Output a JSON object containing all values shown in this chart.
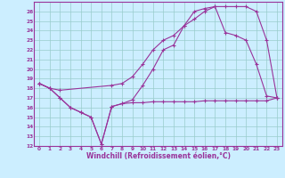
{
  "xlabel": "Windchill (Refroidissement éolien,°C)",
  "bg_color": "#cceeff",
  "line_color": "#993399",
  "grid_color": "#99cccc",
  "xlim": [
    -0.5,
    23.5
  ],
  "ylim": [
    12,
    27
  ],
  "xticks": [
    0,
    1,
    2,
    3,
    4,
    5,
    6,
    7,
    8,
    9,
    10,
    11,
    12,
    13,
    14,
    15,
    16,
    17,
    18,
    19,
    20,
    21,
    22,
    23
  ],
  "yticks": [
    12,
    13,
    14,
    15,
    16,
    17,
    18,
    19,
    20,
    21,
    22,
    23,
    24,
    25,
    26
  ],
  "curve1_x": [
    0,
    1,
    2,
    3,
    4,
    5,
    6,
    7,
    8,
    9,
    10,
    11,
    12,
    13,
    14,
    15,
    16,
    17,
    18,
    19,
    20,
    21,
    22,
    23
  ],
  "curve1_y": [
    18.5,
    18.0,
    17.0,
    16.0,
    15.5,
    15.0,
    12.2,
    16.1,
    16.4,
    16.5,
    16.5,
    16.6,
    16.6,
    16.6,
    16.6,
    16.6,
    16.7,
    16.7,
    16.7,
    16.7,
    16.7,
    16.7,
    16.7,
    17.0
  ],
  "curve2_x": [
    0,
    1,
    2,
    3,
    4,
    5,
    6,
    7,
    8,
    9,
    10,
    11,
    12,
    13,
    14,
    15,
    16,
    17,
    18,
    19,
    20,
    21,
    22,
    23
  ],
  "curve2_y": [
    18.5,
    18.0,
    17.0,
    16.0,
    15.5,
    15.0,
    12.2,
    16.1,
    16.4,
    16.8,
    18.3,
    20.0,
    22.0,
    22.5,
    24.5,
    26.0,
    26.3,
    26.5,
    23.8,
    23.5,
    23.0,
    20.5,
    17.2,
    17.0
  ],
  "curve3_x": [
    0,
    1,
    2,
    7,
    8,
    9,
    10,
    11,
    12,
    13,
    14,
    15,
    16,
    17,
    18,
    19,
    20,
    21,
    22,
    23
  ],
  "curve3_y": [
    18.5,
    18.0,
    17.8,
    18.3,
    18.5,
    19.2,
    20.5,
    22.0,
    23.0,
    23.5,
    24.5,
    25.2,
    26.0,
    26.5,
    26.5,
    26.5,
    26.5,
    26.0,
    23.0,
    17.0
  ]
}
